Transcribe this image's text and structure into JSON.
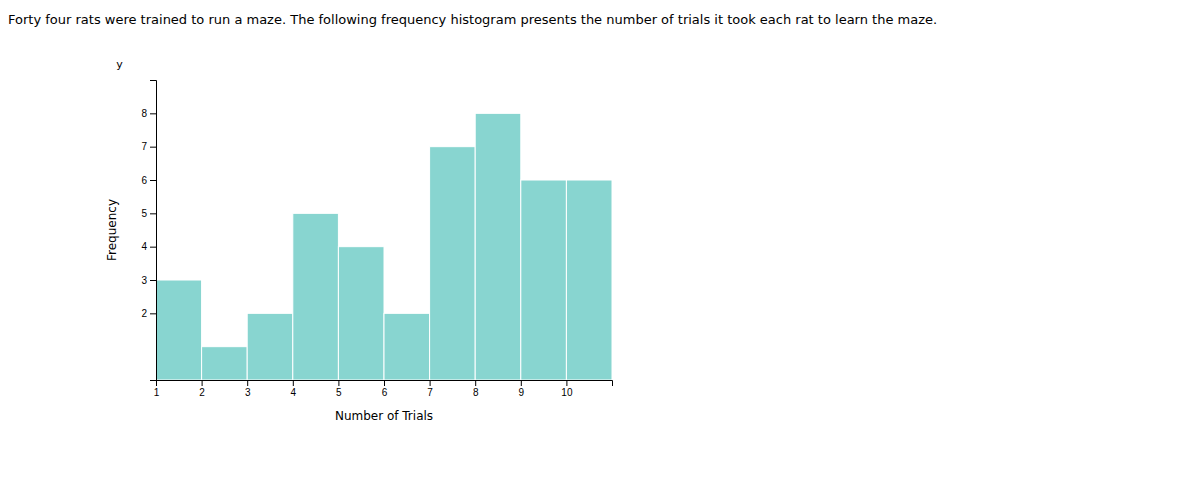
{
  "chart_data": {
    "type": "histogram",
    "title": "Forty four rats were trained to run a maze. The following frequency histogram presents the number of trials it took each rat to learn the maze.",
    "x_label": "Number of Trials",
    "y_label": "Frequency",
    "annotations": [
      "y"
    ],
    "bins": [
      1,
      2,
      3,
      4,
      5,
      6,
      7,
      8,
      9,
      10,
      11
    ],
    "values": [
      3,
      1,
      2,
      5,
      4,
      2,
      7,
      8,
      6,
      6
    ],
    "color": "#88d5d0",
    "xlim": [
      1,
      11
    ],
    "xticks": [
      1,
      2,
      3,
      4,
      5,
      6,
      7,
      8,
      9,
      10
    ],
    "ylim": [
      0,
      9
    ],
    "yticks": [
      2,
      3,
      4,
      5,
      6,
      7,
      8
    ],
    "grid": false
  }
}
